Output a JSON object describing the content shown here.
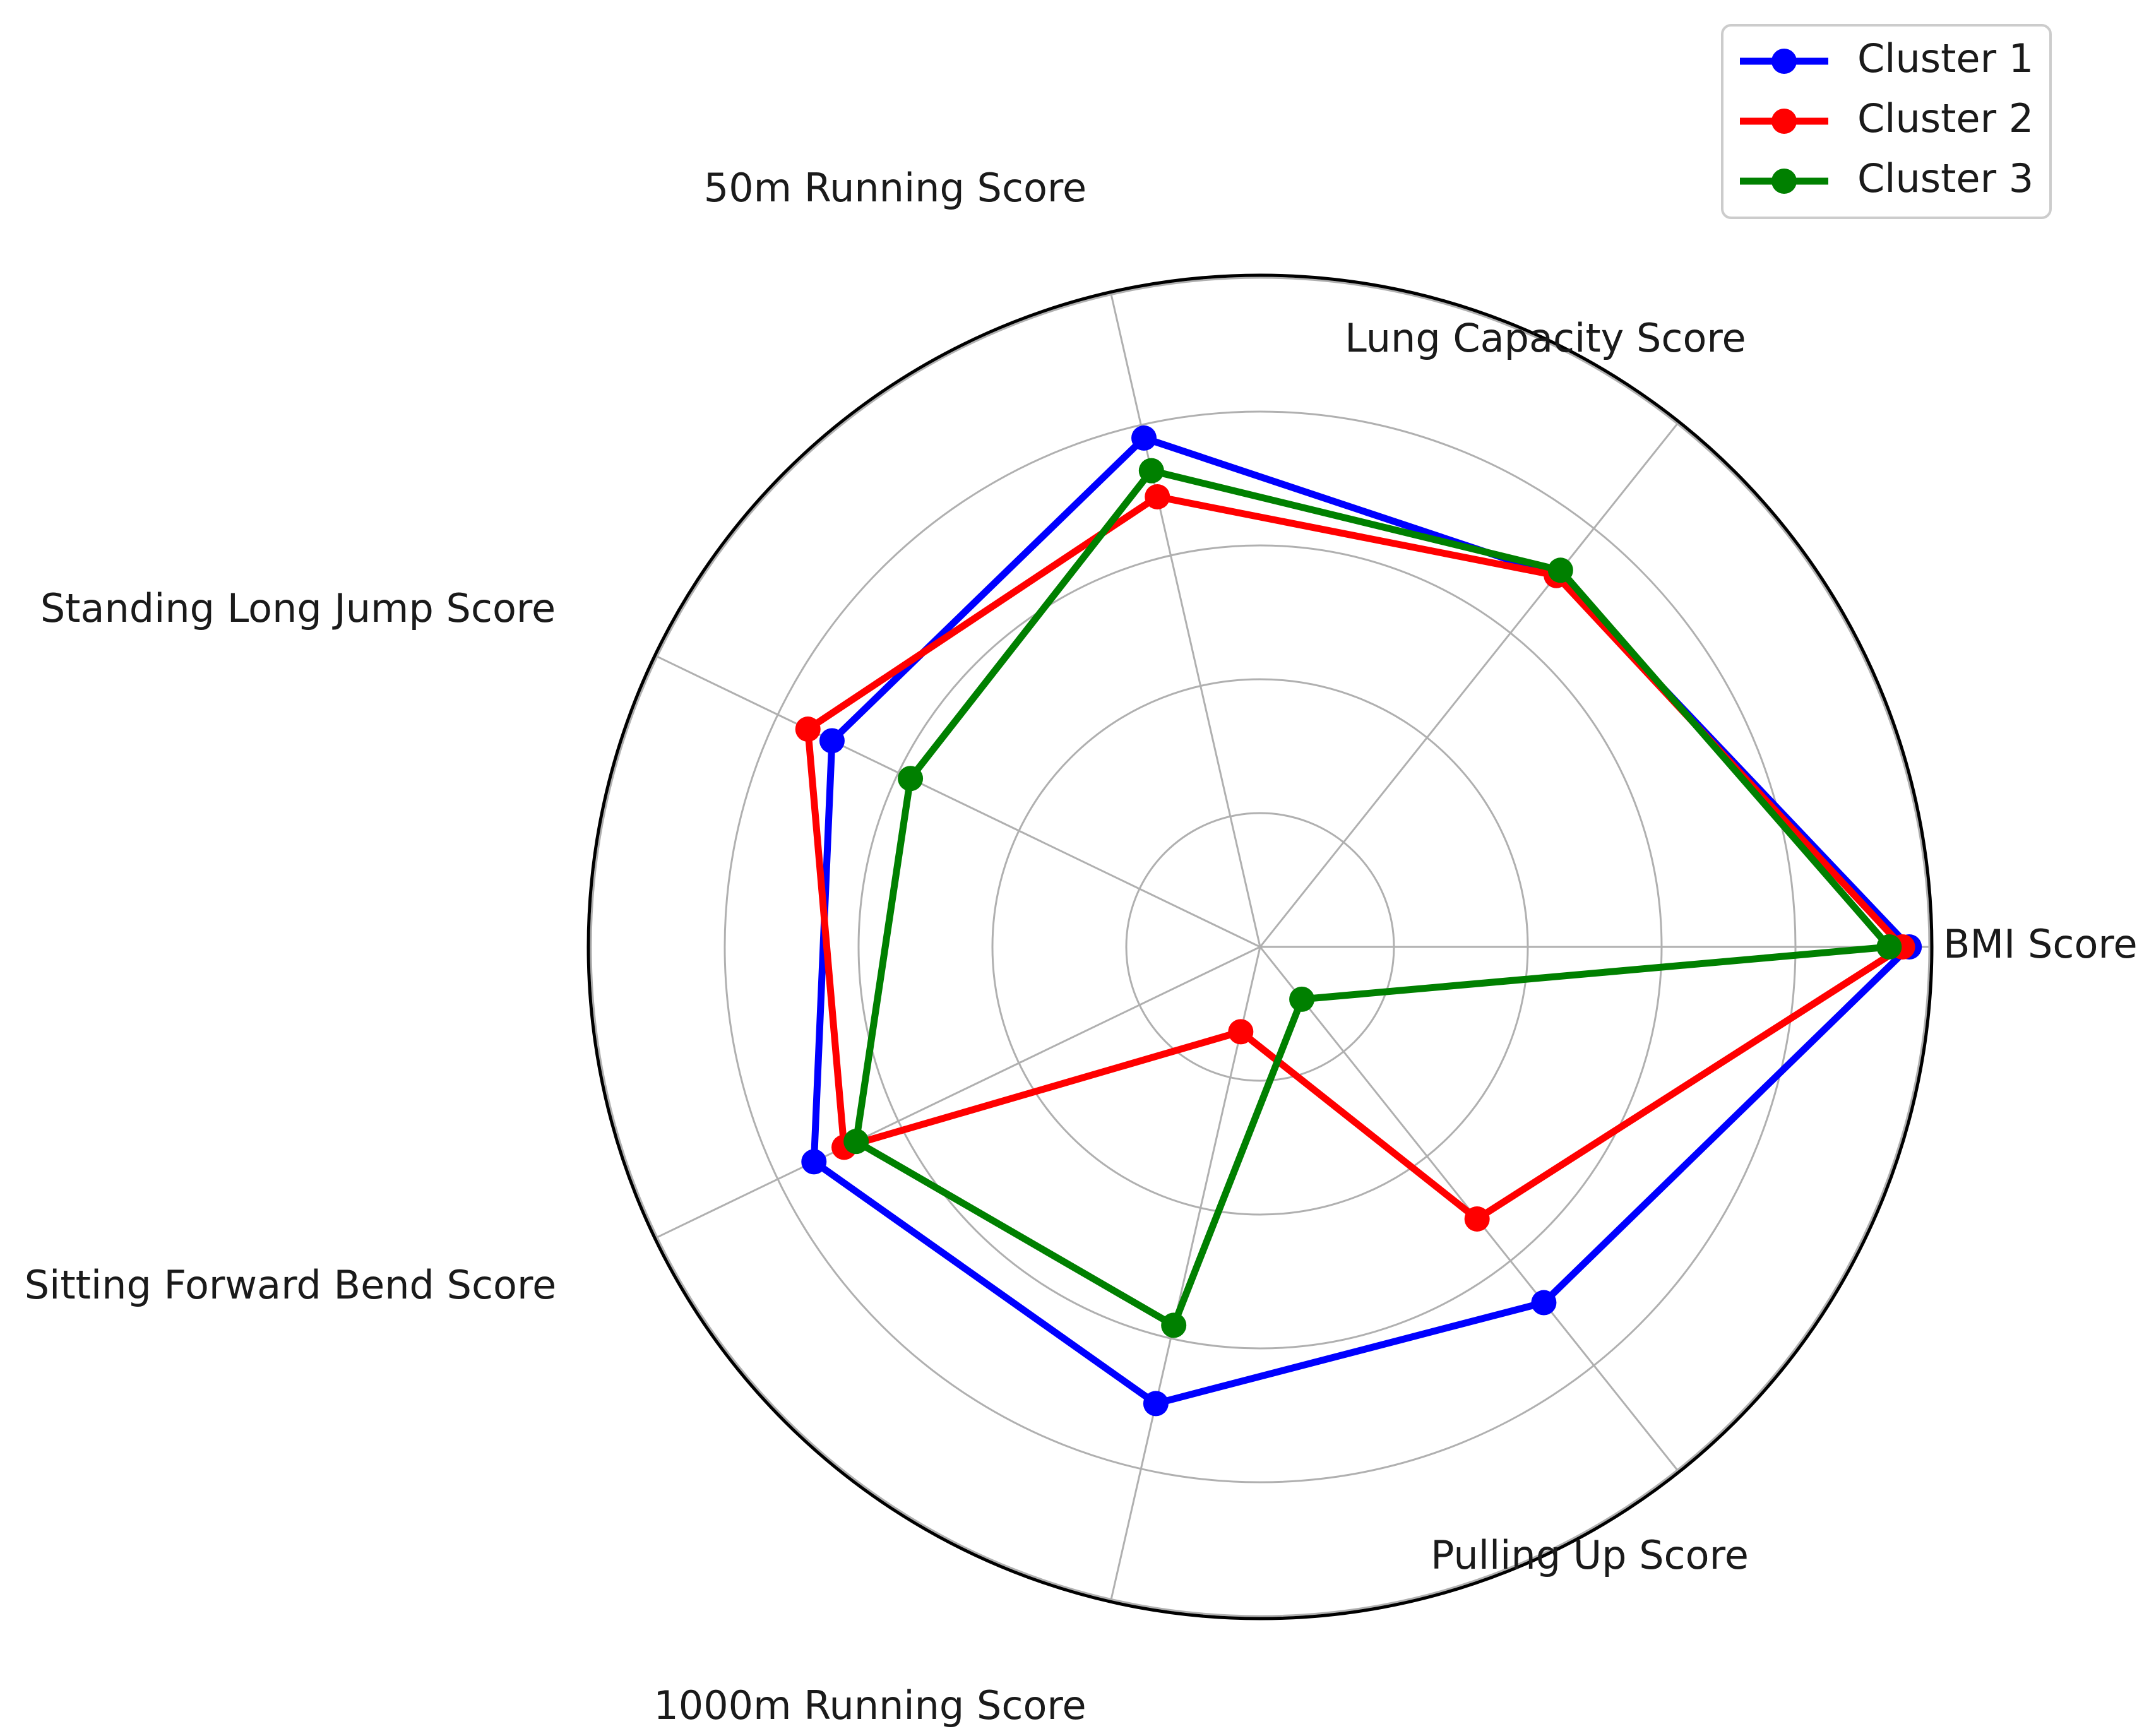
{
  "chart_data": {
    "type": "radar",
    "axes": [
      "BMI Score",
      "Lung Capacity Score",
      "50m Running Score",
      "Standing Long Jump Score",
      "Sitting Forward Bend Score",
      "1000m Running Score",
      "Pulling Up Score"
    ],
    "rlim": [
      0,
      100
    ],
    "rgrid": [
      20,
      40,
      60,
      80,
      100
    ],
    "grid": true,
    "legend": "top-right",
    "series": [
      {
        "name": "Cluster 1",
        "color": "#0000ff",
        "values": [
          97,
          71,
          78,
          71,
          74,
          70,
          68
        ]
      },
      {
        "name": "Cluster 2",
        "color": "#ff0000",
        "values": [
          96,
          71,
          69,
          75,
          69,
          13,
          52
        ]
      },
      {
        "name": "Cluster 3",
        "color": "#008000",
        "values": [
          94,
          72,
          73,
          58,
          67,
          58,
          10
        ]
      }
    ]
  }
}
